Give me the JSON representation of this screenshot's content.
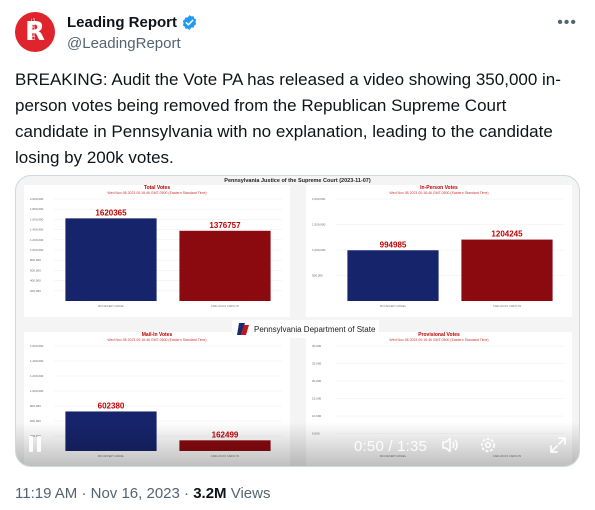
{
  "author": {
    "display_name": "Leading Report",
    "handle": "@LeadingReport",
    "avatar_letter": "R",
    "avatar_tag": "LEADING"
  },
  "tweet": {
    "text": "BREAKING: Audit the Vote PA has released a video showing 350,000 in-person votes being removed from the Republican Supreme Court candidate in Pennsylvania with no explanation, leading to the candidate losing by 200k votes."
  },
  "media": {
    "title": "Pennsylvania Justice of the Supreme Court (2023-11-07)",
    "source_text": "Pennsylvania Department of State",
    "time_readout": "0:50 / 1:35",
    "charts": [
      {
        "title": "Total Votes",
        "subtitle": "Wed Nov 08 2023 00:16:46 GMT-0500 (Eastern Standard Time)",
        "yticks": [
          "2,000,000",
          "1,800,000",
          "1,600,000",
          "1,400,000",
          "1,200,000",
          "1,000,000",
          "800,000",
          "600,000",
          "400,000",
          "200,000"
        ],
        "categories": [
          "MCCAFFERY DANIEL",
          "CARLUCCIO CAROLYN"
        ],
        "values": [
          1620365,
          1376757
        ],
        "value_labels": [
          "1620365",
          "1376757"
        ],
        "ymax": 2000000
      },
      {
        "title": "In-Person Votes",
        "subtitle": "Wed Nov 08 2023 00:16:46 GMT-0500 (Eastern Standard Time)",
        "yticks": [
          "2,000,000",
          "1,500,000",
          "1,000,000",
          "500,000"
        ],
        "categories": [
          "MCCAFFERY DANIEL",
          "CARLUCCIO CAROLYN"
        ],
        "values": [
          994985,
          1204245
        ],
        "value_labels": [
          "994985",
          "1204245"
        ],
        "ymax": 2000000
      },
      {
        "title": "Mail-In Votes",
        "subtitle": "Wed Nov 08 2023 00:16:46 GMT-0500 (Eastern Standard Time)",
        "yticks": [
          "1,600,000",
          "1,400,000",
          "1,200,000",
          "1,000,000",
          "800,000",
          "600,000",
          "400,000"
        ],
        "categories": [
          "MCCAFFERY DANIEL",
          "CARLUCCIO CAROLYN"
        ],
        "values": [
          602380,
          162499
        ],
        "value_labels": [
          "602380",
          "162499"
        ],
        "ymax": 1600000
      },
      {
        "title": "Provisional Votes",
        "subtitle": "Wed Nov 08 2023 00:16:46 GMT-0500 (Eastern Standard Time)",
        "yticks": [
          "30,000",
          "25,000",
          "20,000",
          "15,000",
          "10,000",
          "5,000"
        ],
        "categories": [
          "MCCAFFERY DANIEL",
          "CARLUCCIO CAROLYN"
        ],
        "values": [
          0,
          0
        ],
        "value_labels": [
          "0",
          "0"
        ],
        "ymax": 30000
      }
    ],
    "colors": {
      "bar_1": "#16246b",
      "bar_2": "#8b0a10",
      "accent": "#c00000"
    }
  },
  "footer": {
    "time": "11:19 AM",
    "date": "Nov 16, 2023",
    "views": "3.2M",
    "views_label": "Views"
  },
  "icons": [
    "verified-icon",
    "more-icon",
    "pause-icon",
    "volume-icon",
    "settings-icon",
    "fullscreen-icon",
    "pa-logo-icon"
  ]
}
